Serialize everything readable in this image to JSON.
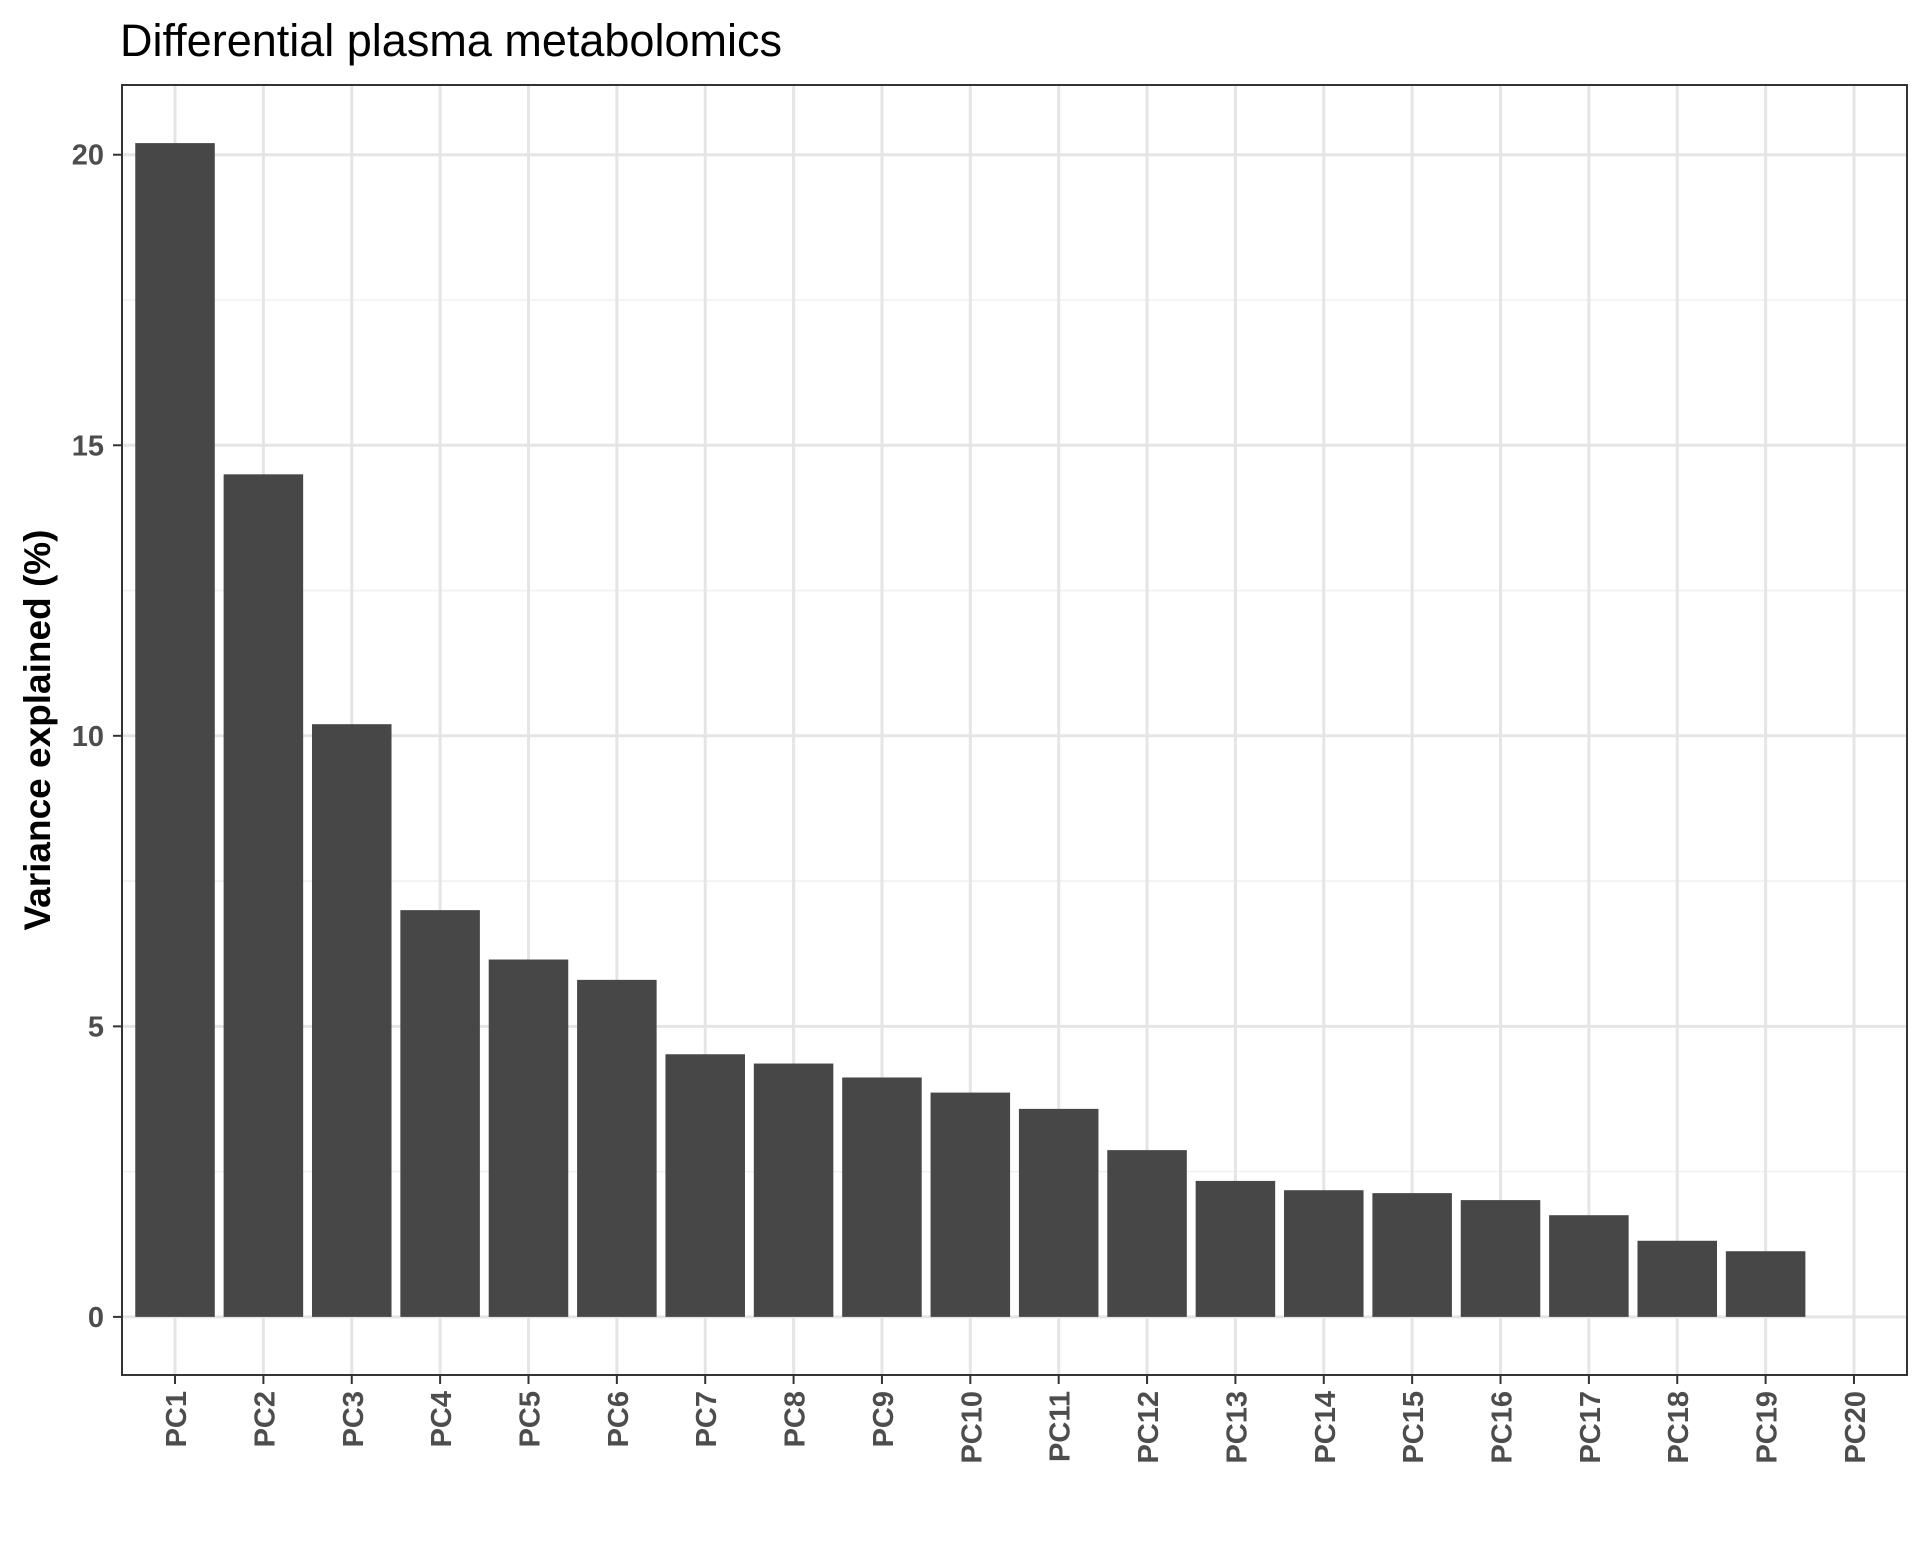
{
  "chart_data": {
    "type": "bar",
    "title": "Differential plasma metabolomics",
    "xlabel": "",
    "ylabel": "Variance explained (%)",
    "categories": [
      "PC1",
      "PC2",
      "PC3",
      "PC4",
      "PC5",
      "PC6",
      "PC7",
      "PC8",
      "PC9",
      "PC10",
      "PC11",
      "PC12",
      "PC13",
      "PC14",
      "PC15",
      "PC16",
      "PC17",
      "PC18",
      "PC19",
      "PC20"
    ],
    "values": [
      20.2,
      14.5,
      10.2,
      7.0,
      6.15,
      5.8,
      4.52,
      4.36,
      4.12,
      3.86,
      3.58,
      2.87,
      2.34,
      2.18,
      2.13,
      2.01,
      1.75,
      1.31,
      1.13,
      0.0
    ],
    "ylim": [
      -1.0,
      21.2
    ],
    "yticks": [
      0,
      5,
      10,
      15,
      20
    ],
    "ytick_labels": [
      "0",
      "5",
      "10",
      "15",
      "20"
    ],
    "grid": true,
    "bar_color": "#474747"
  }
}
